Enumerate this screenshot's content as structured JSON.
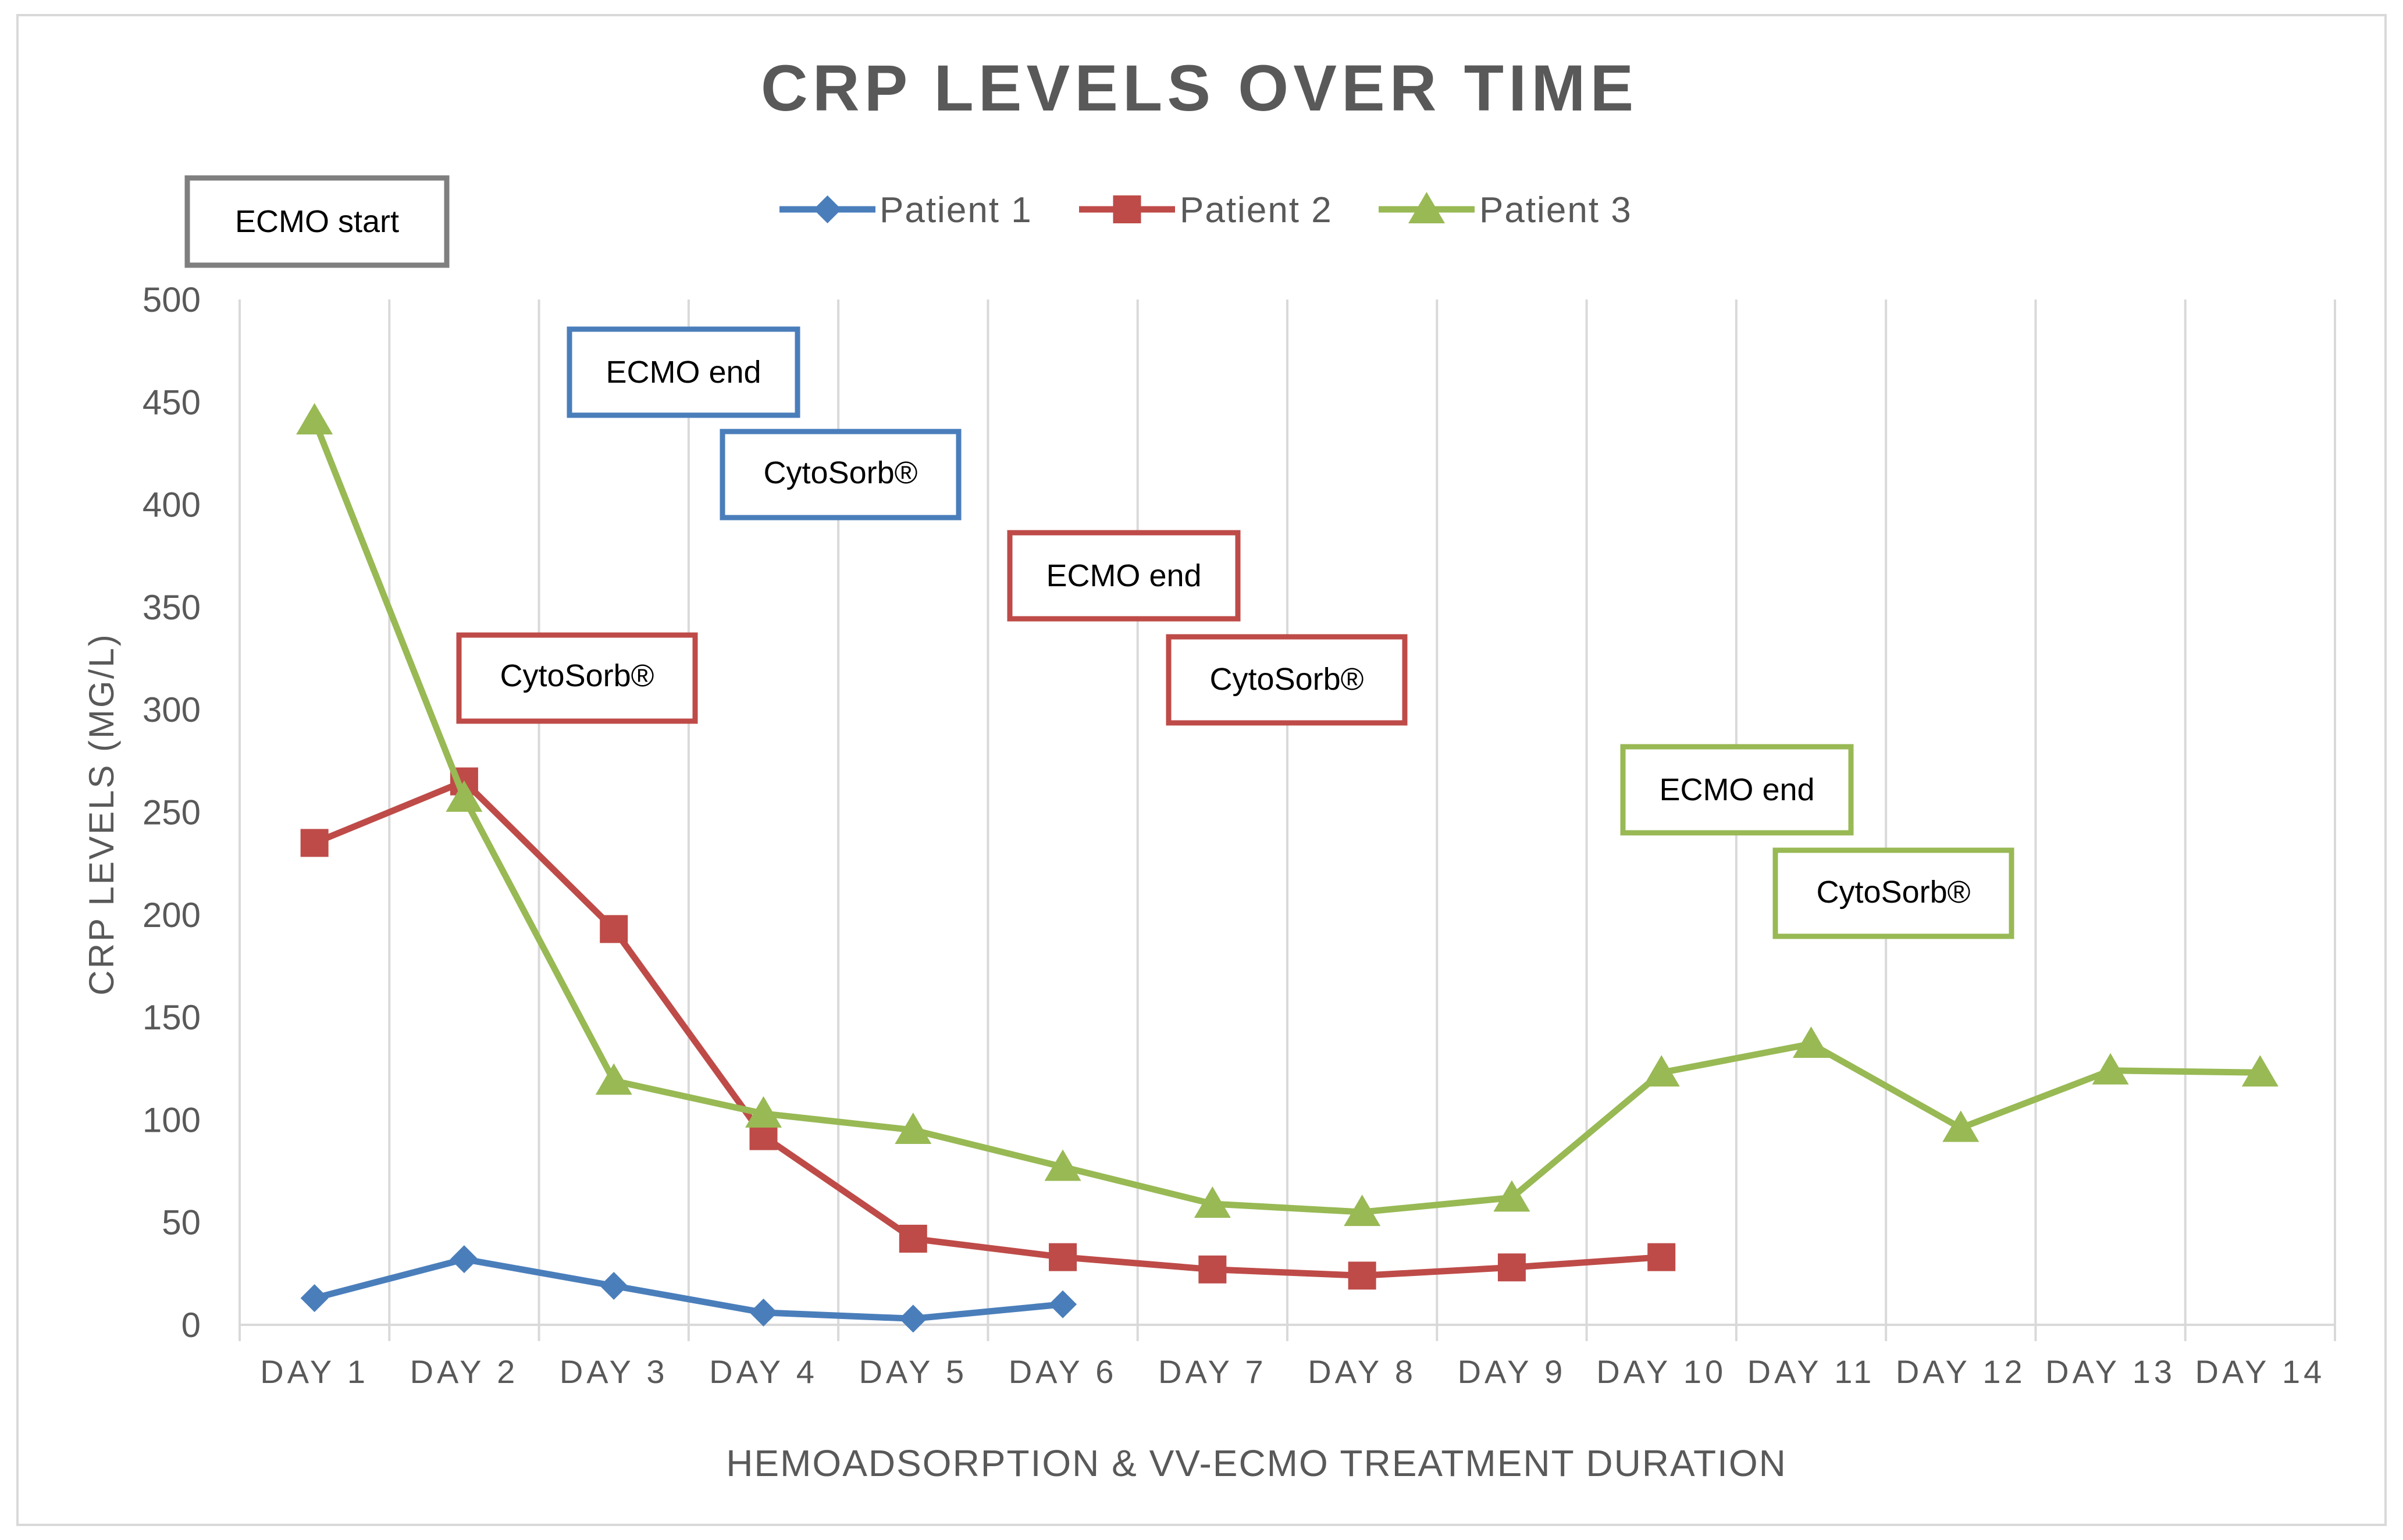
{
  "chart_data": {
    "type": "line",
    "title": "CRP LEVELS OVER TIME",
    "xlabel": "HEMOADSORPTION & VV-ECMO TREATMENT DURATION",
    "ylabel": "CRP LEVELS (MG/L)",
    "ylim": [
      0,
      500
    ],
    "yticks": [
      "0",
      "50",
      "100",
      "150",
      "200",
      "250",
      "300",
      "350",
      "400",
      "450",
      "500"
    ],
    "grid": "vertical",
    "legend_position": "top-center",
    "categories": [
      "DAY 1",
      "DAY 2",
      "DAY 3",
      "DAY 4",
      "DAY 5",
      "DAY 6",
      "DAY 7",
      "DAY 8",
      "DAY 9",
      "DAY 10",
      "DAY 11",
      "DAY 12",
      "DAY 13",
      "DAY 14"
    ],
    "series": [
      {
        "name": "Patient 1",
        "color": "#4a7ebb",
        "marker": "diamond",
        "values": [
          13,
          32,
          19,
          6,
          3,
          10,
          null,
          null,
          null,
          null,
          null,
          null,
          null,
          null
        ]
      },
      {
        "name": "Patient 2",
        "color": "#be4b48",
        "marker": "square",
        "values": [
          235,
          265,
          193,
          92,
          42,
          33,
          27,
          24,
          28,
          33,
          null,
          null,
          null,
          null
        ]
      },
      {
        "name": "Patient 3",
        "color": "#98b954",
        "marker": "triangle",
        "values": [
          441,
          257,
          119,
          103,
          95,
          77,
          59,
          55,
          62,
          123,
          137,
          96,
          124,
          123
        ]
      }
    ],
    "annotations": [
      {
        "text": "ECMO start",
        "color": "#7f7f7f"
      },
      {
        "text": "ECMO end",
        "color": "#4a7ebb"
      },
      {
        "text": "CytoSorb®",
        "color": "#4a7ebb"
      },
      {
        "text": "CytoSorb®",
        "color": "#be4b48"
      },
      {
        "text": "ECMO end",
        "color": "#be4b48"
      },
      {
        "text": "CytoSorb®",
        "color": "#be4b48"
      },
      {
        "text": "ECMO end",
        "color": "#98b954"
      },
      {
        "text": "CytoSorb®",
        "color": "#98b954"
      }
    ]
  }
}
